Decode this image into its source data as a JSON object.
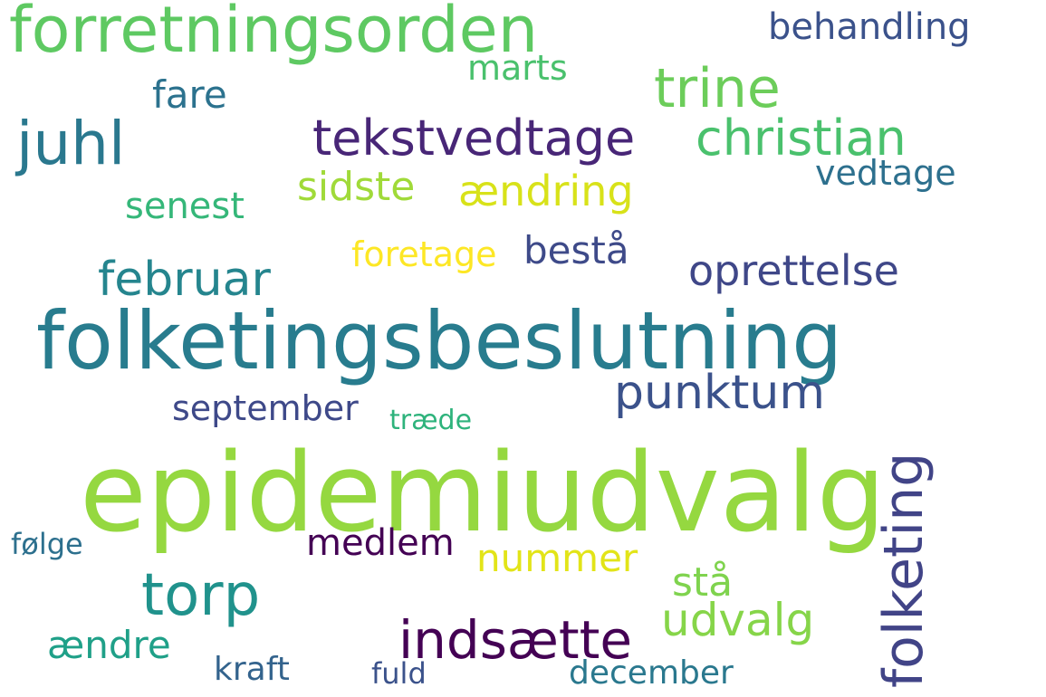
{
  "words": [
    {
      "text": "forretningsorden",
      "color": "#5ec962"
    },
    {
      "text": "behandling",
      "color": "#3b528b"
    },
    {
      "text": "marts",
      "color": "#4ac16d"
    },
    {
      "text": "trine",
      "color": "#6ccd5a"
    },
    {
      "text": "fare",
      "color": "#2c728e"
    },
    {
      "text": "juhl",
      "color": "#2a788e"
    },
    {
      "text": "tekstvedtage",
      "color": "#482677"
    },
    {
      "text": "christian",
      "color": "#4ac16d"
    },
    {
      "text": "vedtage",
      "color": "#2d708e"
    },
    {
      "text": "sidste",
      "color": "#a0da39"
    },
    {
      "text": "ændring",
      "color": "#d8e219"
    },
    {
      "text": "senest",
      "color": "#35b779"
    },
    {
      "text": "foretage",
      "color": "#fde725"
    },
    {
      "text": "bestå",
      "color": "#3e4a89"
    },
    {
      "text": "februar",
      "color": "#25858e"
    },
    {
      "text": "oprettelse",
      "color": "#3f4788"
    },
    {
      "text": "folketingsbeslutning",
      "color": "#287c8e"
    },
    {
      "text": "punktum",
      "color": "#3b528b"
    },
    {
      "text": "september",
      "color": "#3e4989"
    },
    {
      "text": "træde",
      "color": "#2eb37c"
    },
    {
      "text": "folketing",
      "color": "#414487"
    },
    {
      "text": "epidemiudvalg",
      "color": "#95d840"
    },
    {
      "text": "følge",
      "color": "#2d708e"
    },
    {
      "text": "medlem",
      "color": "#440154"
    },
    {
      "text": "nummer",
      "color": "#e2e418"
    },
    {
      "text": "torp",
      "color": "#20928c"
    },
    {
      "text": "stå",
      "color": "#7fd34e"
    },
    {
      "text": "udvalg",
      "color": "#86d549"
    },
    {
      "text": "indsætte",
      "color": "#440154"
    },
    {
      "text": "ændre",
      "color": "#1fa088"
    },
    {
      "text": "kraft",
      "color": "#33638d"
    },
    {
      "text": "fuld",
      "color": "#3b528b"
    },
    {
      "text": "december",
      "color": "#2a788e"
    }
  ]
}
